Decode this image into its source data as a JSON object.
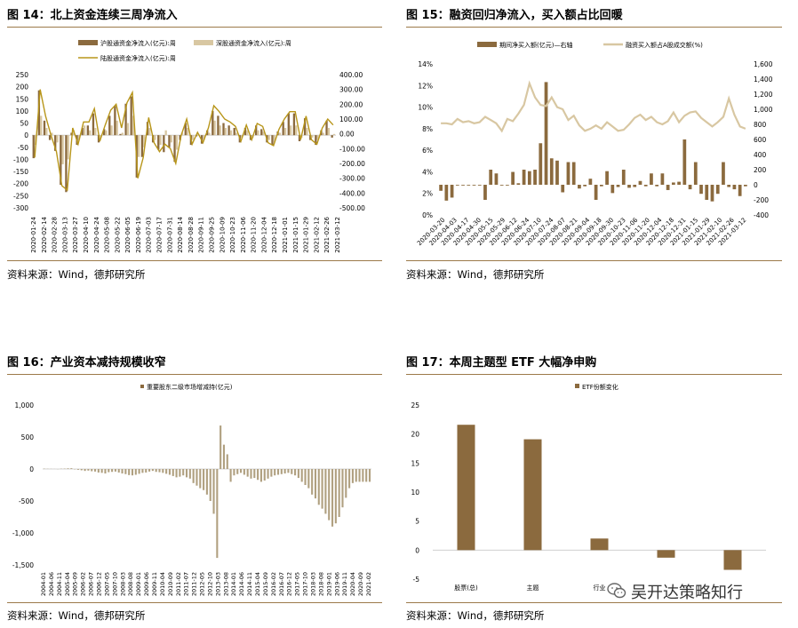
{
  "panels": {
    "p14": {
      "title": "图 14：北上资金连续三周净流入",
      "source": "资料来源：Wind，德邦研究所"
    },
    "p15": {
      "title": "图 15：融资回归净流入，买入额占比回暖",
      "source": "资料来源：Wind，德邦研究所"
    },
    "p16": {
      "title": "图 16：产业资本减持规模收窄",
      "source": "资料来源：Wind，德邦研究所"
    },
    "p17": {
      "title": "图 17：本周主题型 ETF 大幅净申购",
      "source": "资料来源：Wind，德邦研究所"
    }
  },
  "watermark": {
    "text": "吴开达策略知行",
    "icon": "wechat-icon"
  },
  "colors": {
    "brown": "#8b6a3e",
    "tan": "#d8c7a2",
    "gold": "#b8961a",
    "rule": "#9c7a4a",
    "zero": "#c8c8c8"
  },
  "chart_data": [
    {
      "id": "p14",
      "type": "bar+line",
      "legend": [
        "沪股通资金净流入(亿元):周",
        "深股通资金净流入(亿元):周",
        "陆股通资金净流入(亿元):周"
      ],
      "y_left": {
        "min": -300,
        "max": 250,
        "ticks": [
          "250",
          "200",
          "150",
          "100",
          "50",
          "0",
          "-50",
          "-100",
          "-150",
          "-200",
          "-250",
          "-300"
        ]
      },
      "y_right": {
        "min": -500,
        "max": 400,
        "ticks": [
          "400.00",
          "300.00",
          "200.00",
          "100.00",
          "0.00",
          "-100.00",
          "-200.00",
          "-300.00",
          "-400.00",
          "-500.00"
        ]
      },
      "x_labels": [
        "2020-01-24",
        "2020-02-14",
        "2020-02-28",
        "2020-03-13",
        "2020-03-27",
        "2020-04-10",
        "2020-04-24",
        "2020-05-08",
        "2020-05-22",
        "2020-06-05",
        "2020-06-19",
        "2020-07-03",
        "2020-07-17",
        "2020-07-31",
        "2020-08-14",
        "2020-08-28",
        "2020-09-11",
        "2020-09-25",
        "2020-10-09",
        "2020-10-23",
        "2020-11-06",
        "2020-11-20",
        "2020-12-04",
        "2020-12-18",
        "2021-01-01",
        "2021-01-15",
        "2021-01-29",
        "2021-02-12",
        "2021-02-26",
        "2021-03-12"
      ],
      "sh": [
        -95,
        185,
        60,
        -20,
        -65,
        -205,
        -235,
        10,
        -40,
        30,
        40,
        90,
        -30,
        25,
        80,
        120,
        5,
        130,
        160,
        -175,
        -90,
        55,
        -30,
        -60,
        -70,
        -50,
        -110,
        -20,
        50,
        -40,
        -5,
        -35,
        20,
        100,
        80,
        50,
        40,
        30,
        -30,
        30,
        -20,
        40,
        25,
        -30,
        -40,
        15,
        55,
        90,
        90,
        -25,
        70,
        -20,
        -40,
        20,
        60,
        -10
      ],
      "sz": [
        -40,
        80,
        30,
        10,
        -30,
        -120,
        -100,
        20,
        -20,
        40,
        20,
        30,
        -10,
        20,
        40,
        60,
        10,
        50,
        80,
        -90,
        -50,
        30,
        -20,
        -40,
        20,
        -30,
        -60,
        10,
        30,
        -20,
        5,
        -20,
        10,
        60,
        40,
        30,
        20,
        10,
        -10,
        20,
        -10,
        20,
        15,
        -20,
        -30,
        10,
        30,
        40,
        40,
        -10,
        30,
        -10,
        -20,
        10,
        30,
        5
      ],
      "total": [
        -160,
        300,
        120,
        -10,
        -120,
        -350,
        -380,
        40,
        -70,
        80,
        80,
        170,
        -50,
        60,
        160,
        200,
        40,
        210,
        280,
        -300,
        -160,
        110,
        -60,
        -120,
        -70,
        -100,
        -200,
        -10,
        100,
        -70,
        10,
        -60,
        40,
        190,
        150,
        100,
        80,
        50,
        -50,
        60,
        -40,
        70,
        50,
        -60,
        -80,
        30,
        100,
        150,
        150,
        -40,
        120,
        -40,
        -70,
        40,
        100,
        60
      ]
    },
    {
      "id": "p15",
      "type": "bar+line",
      "legend": [
        "期间净买入额(亿元)—右轴",
        "融资买入额占A股成交额(%)"
      ],
      "y_left": {
        "min": 0,
        "max": 14,
        "ticks": [
          "14%",
          "12%",
          "10%",
          "8%",
          "6%",
          "4%",
          "2%",
          "0%"
        ]
      },
      "y_right": {
        "min": -400,
        "max": 1600,
        "ticks": [
          "1,600",
          "1,400",
          "1,200",
          "1,000",
          "800",
          "600",
          "400",
          "200",
          "0",
          "-200",
          "-400"
        ]
      },
      "x_labels": [
        "2020-03-20",
        "2020-04-03",
        "2020-04-17",
        "2020-04-30",
        "2020-05-15",
        "2020-05-29",
        "2020-06-12",
        "2020-06-24",
        "2020-07-10",
        "2020-07-24",
        "2020-08-07",
        "2020-08-21",
        "2020-09-04",
        "2020-09-18",
        "2020-09-30",
        "2020-10-23",
        "2020-11-06",
        "2020-11-20",
        "2020-12-04",
        "2020-12-18",
        "2020-12-31",
        "2021-01-15",
        "2021-01-29",
        "2021-02-10",
        "2021-02-26",
        "2021-03-12"
      ],
      "net_buy": [
        -80,
        -210,
        -170,
        -10,
        -10,
        -10,
        -10,
        -10,
        -200,
        200,
        150,
        -10,
        -10,
        170,
        20,
        200,
        180,
        200,
        550,
        1360,
        350,
        320,
        -100,
        300,
        300,
        -50,
        -20,
        80,
        -200,
        -20,
        180,
        -110,
        -30,
        200,
        -40,
        -30,
        50,
        -20,
        150,
        -20,
        150,
        -70,
        30,
        40,
        600,
        -60,
        300,
        -120,
        -200,
        -220,
        -120,
        300,
        -30,
        -60,
        -150,
        -20
      ],
      "ratio": [
        8.5,
        8.5,
        8.4,
        8.9,
        8.6,
        8.7,
        8.5,
        8.6,
        9.1,
        8.8,
        8.5,
        7.8,
        8.9,
        8.7,
        9.4,
        10.2,
        12.2,
        10.9,
        10.2,
        10.1,
        10.9,
        10.0,
        9.8,
        8.8,
        9.2,
        8.3,
        7.8,
        8.0,
        8.3,
        8.0,
        8.6,
        8.2,
        7.8,
        7.9,
        8.4,
        9.0,
        9.3,
        8.8,
        9.1,
        8.6,
        8.4,
        8.7,
        9.5,
        8.6,
        9.2,
        9.5,
        9.6,
        9.0,
        8.6,
        8.2,
        8.6,
        9.1,
        10.8,
        9.3,
        8.2,
        8.0
      ]
    },
    {
      "id": "p16",
      "type": "bar",
      "legend": [
        "重要股东二级市场增减持(亿元)"
      ],
      "y": {
        "min": -1500,
        "max": 1000,
        "ticks": [
          "1,000",
          "500",
          "0",
          "-500",
          "-1,000",
          "-1,500"
        ]
      },
      "x_labels": [
        "2004-01",
        "2004-06",
        "2004-11",
        "2005-04",
        "2005-09",
        "2006-02",
        "2006-07",
        "2006-12",
        "2007-05",
        "2007-10",
        "2008-03",
        "2008-08",
        "2009-01",
        "2009-06",
        "2009-11",
        "2010-04",
        "2010-09",
        "2011-02",
        "2011-07",
        "2011-12",
        "2012-05",
        "2012-10",
        "2013-03",
        "2013-08",
        "2014-01",
        "2014-06",
        "2014-11",
        "2015-04",
        "2015-09",
        "2016-02",
        "2016-07",
        "2016-12",
        "2017-05",
        "2017-10",
        "2018-03",
        "2018-08",
        "2019-01",
        "2019-06",
        "2019-11",
        "2020-04",
        "2020-09",
        "2021-02"
      ],
      "values": [
        5,
        3,
        2,
        1,
        -2,
        4,
        6,
        10,
        12,
        -5,
        -12,
        -20,
        -30,
        -25,
        -35,
        -40,
        -55,
        -60,
        -70,
        -50,
        -45,
        -40,
        -55,
        -70,
        -80,
        -95,
        -100,
        -90,
        -75,
        -60,
        -55,
        -40,
        -30,
        -45,
        -50,
        -60,
        -75,
        -90,
        -110,
        -130,
        -120,
        -100,
        -130,
        -150,
        -220,
        -260,
        -300,
        -330,
        -400,
        -500,
        -700,
        -1390,
        680,
        380,
        230,
        -200,
        -100,
        -80,
        -60,
        -90,
        -120,
        -150,
        -140,
        -170,
        -200,
        -180,
        -150,
        -120,
        -100,
        -90,
        -80,
        -70,
        -60,
        -80,
        -100,
        -140,
        -200,
        -250,
        -300,
        -400,
        -460,
        -560,
        -620,
        -700,
        -800,
        -900,
        -850,
        -750,
        -600,
        -450,
        -300,
        -220,
        -200,
        -200,
        -200,
        -200,
        -200
      ]
    },
    {
      "id": "p17",
      "type": "bar",
      "legend": [
        "ETF份额变化"
      ],
      "y": {
        "min": -5,
        "max": 25,
        "ticks": [
          "25",
          "20",
          "15",
          "10",
          "5",
          "0",
          "-5"
        ]
      },
      "categories": [
        "股票(总)",
        "主题",
        "行业",
        "",
        ""
      ],
      "values": [
        21.6,
        19.1,
        2.0,
        -1.3,
        -3.4
      ]
    }
  ]
}
